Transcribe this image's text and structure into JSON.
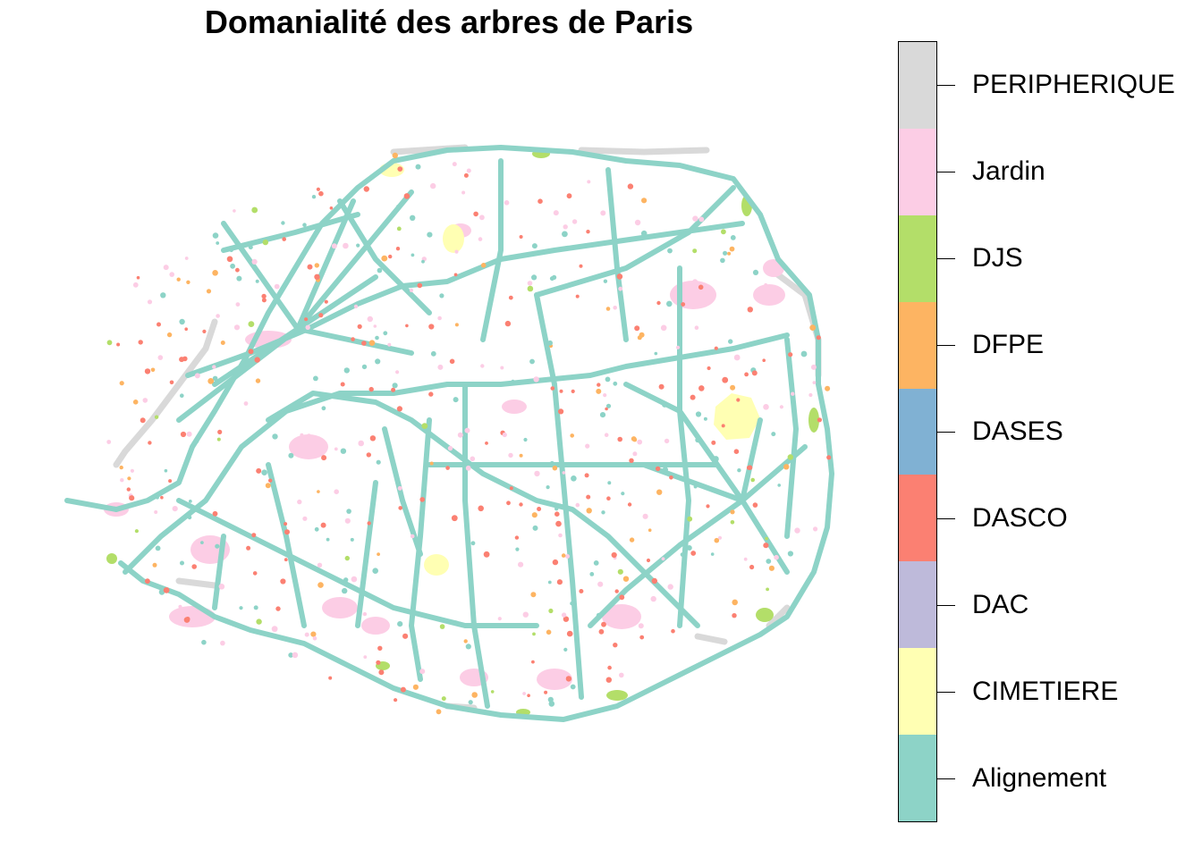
{
  "title": "Domanialité des arbres de Paris",
  "legend": {
    "categories": [
      {
        "label": "PERIPHERIQUE",
        "color": "#D9D9D9"
      },
      {
        "label": "Jardin",
        "color": "#FCCDE5"
      },
      {
        "label": "DJS",
        "color": "#B3DE69"
      },
      {
        "label": "DFPE",
        "color": "#FDB462"
      },
      {
        "label": "DASES",
        "color": "#80B1D3"
      },
      {
        "label": "DASCO",
        "color": "#FB8072"
      },
      {
        "label": "DAC",
        "color": "#BEBADA"
      },
      {
        "label": "CIMETIERE",
        "color": "#FFFFB3"
      },
      {
        "label": "Alignement",
        "color": "#8DD3C7"
      }
    ]
  }
}
